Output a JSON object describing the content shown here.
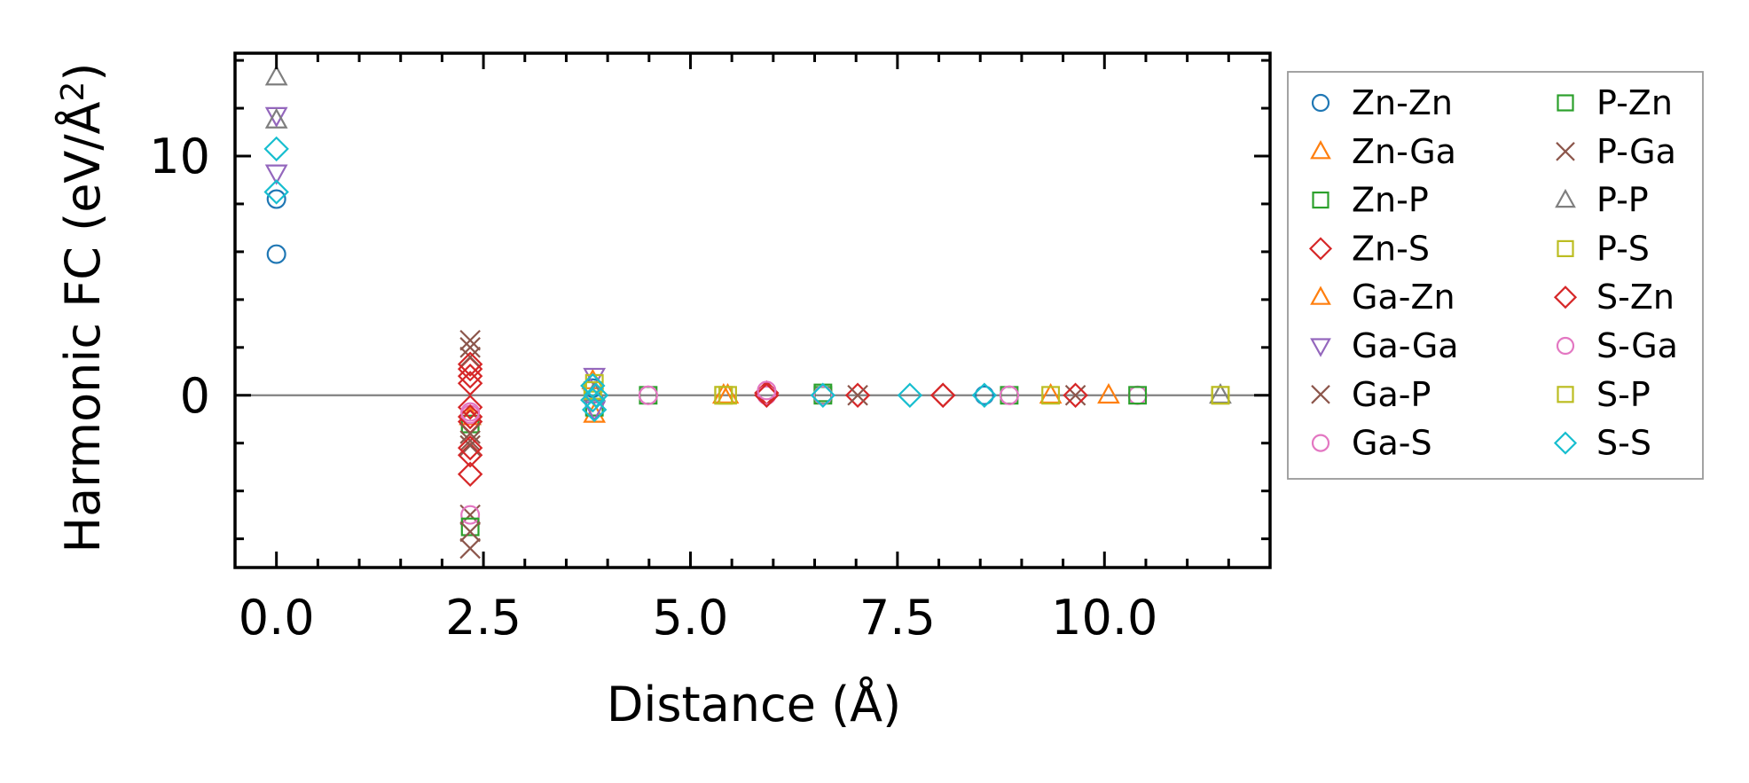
{
  "chart_data": {
    "type": "scatter",
    "title": "",
    "xlabel": "Distance (Å)",
    "ylabel_main": "Harmonic FC (eV/Å",
    "ylabel_sup": "2",
    "ylabel_close": ")",
    "xlim": [
      -0.5,
      12.0
    ],
    "ylim": [
      -7.2,
      14.3
    ],
    "xticks": [
      0.0,
      2.5,
      5.0,
      7.5,
      10.0
    ],
    "xtick_labels": [
      "0.0",
      "2.5",
      "5.0",
      "7.5",
      "10.0"
    ],
    "yticks": [
      0,
      10
    ],
    "ytick_labels": [
      "0",
      "10"
    ],
    "zero_line": true,
    "legend_position": "outside-right",
    "series": [
      {
        "name": "Zn-Zn",
        "marker": "circle",
        "color": "#1f77b4",
        "points": [
          [
            0.0,
            8.2
          ],
          [
            0.0,
            5.9
          ],
          [
            3.82,
            0.3
          ],
          [
            6.6,
            0.0
          ],
          [
            8.55,
            0.0
          ]
        ]
      },
      {
        "name": "Zn-Ga",
        "marker": "triangle-up",
        "color": "#ff7f0e",
        "points": [
          [
            2.34,
            -0.9
          ],
          [
            3.84,
            -0.8
          ],
          [
            5.4,
            0.0
          ],
          [
            10.05,
            0.0
          ]
        ]
      },
      {
        "name": "Zn-P",
        "marker": "square",
        "color": "#2ca02c",
        "points": [
          [
            2.34,
            -1.2
          ],
          [
            3.84,
            -0.5
          ],
          [
            4.49,
            0.0
          ],
          [
            6.6,
            0.0
          ]
        ]
      },
      {
        "name": "Zn-S",
        "marker": "diamond",
        "color": "#d62728",
        "points": [
          [
            2.34,
            1.1
          ],
          [
            2.34,
            0.5
          ],
          [
            2.34,
            -0.5
          ],
          [
            2.34,
            -1.1
          ],
          [
            2.34,
            -2.5
          ],
          [
            2.34,
            -3.3
          ],
          [
            5.92,
            0.1
          ],
          [
            7.02,
            0.0
          ],
          [
            8.05,
            0.0
          ]
        ]
      },
      {
        "name": "Ga-Zn",
        "marker": "triangle-up",
        "color": "#ff7f0e",
        "points": [
          [
            3.82,
            0.6
          ],
          [
            5.45,
            0.0
          ],
          [
            9.35,
            0.0
          ]
        ]
      },
      {
        "name": "Ga-Ga",
        "marker": "triangle-down",
        "color": "#9467bd",
        "points": [
          [
            0.0,
            11.7
          ],
          [
            0.0,
            9.3
          ],
          [
            3.84,
            0.8
          ],
          [
            3.84,
            -0.6
          ]
        ]
      },
      {
        "name": "Ga-P",
        "marker": "x",
        "color": "#8c564b",
        "points": [
          [
            2.34,
            2.3
          ],
          [
            2.34,
            1.6
          ],
          [
            2.34,
            -1.6
          ],
          [
            2.34,
            -2.1
          ],
          [
            2.34,
            -5.0
          ],
          [
            2.34,
            -6.4
          ],
          [
            9.65,
            0.0
          ]
        ]
      },
      {
        "name": "Ga-S",
        "marker": "circle",
        "color": "#e377c2",
        "points": [
          [
            2.34,
            -0.8
          ],
          [
            2.34,
            -5.0
          ],
          [
            4.49,
            0.0
          ],
          [
            5.92,
            0.0
          ],
          [
            8.85,
            0.0
          ],
          [
            10.4,
            0.0
          ]
        ]
      },
      {
        "name": "P-Zn",
        "marker": "square",
        "color": "#2ca02c",
        "points": [
          [
            2.34,
            -5.5
          ],
          [
            6.6,
            0.1
          ],
          [
            8.85,
            0.0
          ],
          [
            10.4,
            0.0
          ]
        ]
      },
      {
        "name": "P-Ga",
        "marker": "x",
        "color": "#8c564b",
        "points": [
          [
            2.34,
            2.0
          ],
          [
            2.34,
            -1.9
          ],
          [
            2.34,
            -5.7
          ],
          [
            7.02,
            0.0
          ]
        ]
      },
      {
        "name": "P-P",
        "marker": "triangle-up",
        "color": "#7f7f7f",
        "points": [
          [
            0.0,
            13.3
          ],
          [
            0.0,
            11.5
          ],
          [
            3.84,
            0.1
          ],
          [
            11.4,
            0.0
          ]
        ]
      },
      {
        "name": "P-S",
        "marker": "square",
        "color": "#bcbd22",
        "points": [
          [
            3.84,
            0.5
          ],
          [
            5.4,
            0.0
          ],
          [
            5.45,
            0.0
          ],
          [
            11.4,
            0.0
          ]
        ]
      },
      {
        "name": "S-Zn",
        "marker": "diamond",
        "color": "#d62728",
        "points": [
          [
            2.34,
            1.3
          ],
          [
            2.34,
            0.8
          ],
          [
            2.34,
            -0.9
          ],
          [
            2.34,
            -2.2
          ],
          [
            5.92,
            0.0
          ],
          [
            8.05,
            0.0
          ],
          [
            9.65,
            0.0
          ]
        ]
      },
      {
        "name": "S-Ga",
        "marker": "circle",
        "color": "#e377c2",
        "points": [
          [
            2.34,
            -0.7
          ],
          [
            4.49,
            0.0
          ],
          [
            5.92,
            0.2
          ],
          [
            6.6,
            0.0
          ],
          [
            8.85,
            0.0
          ]
        ]
      },
      {
        "name": "S-P",
        "marker": "square",
        "color": "#bcbd22",
        "points": [
          [
            3.82,
            0.2
          ],
          [
            5.4,
            0.0
          ],
          [
            9.35,
            0.0
          ],
          [
            11.4,
            0.0
          ]
        ]
      },
      {
        "name": "S-S",
        "marker": "diamond",
        "color": "#17becf",
        "points": [
          [
            0.0,
            10.3
          ],
          [
            0.0,
            8.5
          ],
          [
            3.82,
            0.4
          ],
          [
            3.82,
            -0.2
          ],
          [
            3.84,
            -0.6
          ],
          [
            3.86,
            0.0
          ],
          [
            6.6,
            0.0
          ],
          [
            7.65,
            0.0
          ],
          [
            8.55,
            0.0
          ]
        ]
      }
    ]
  }
}
